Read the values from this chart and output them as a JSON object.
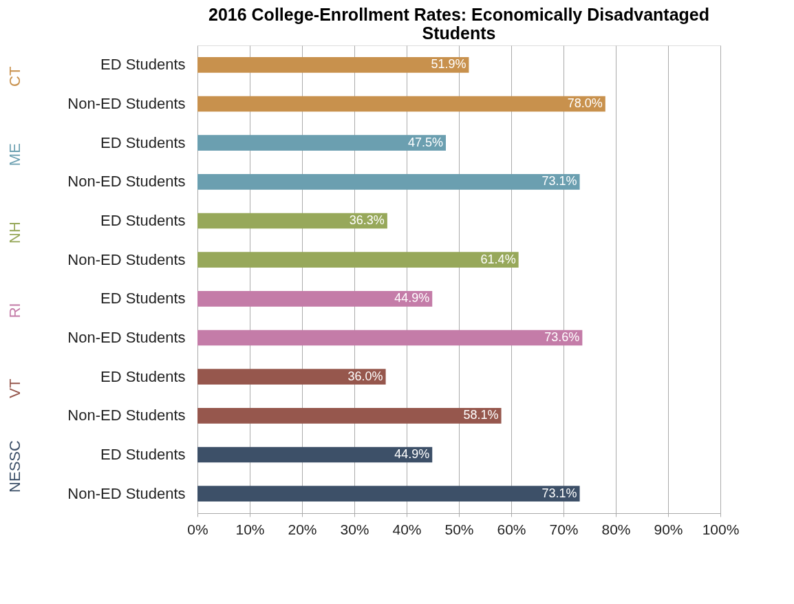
{
  "chart_data": {
    "type": "bar",
    "orientation": "horizontal",
    "title": "2016 College-Enrollment Rates: Economically Disadvantaged Students",
    "categories": [
      "ED Students",
      "Non-ED Students",
      "ED Students",
      "Non-ED Students",
      "ED Students",
      "Non-ED Students",
      "ED Students",
      "Non-ED Students",
      "ED Students",
      "Non-ED Students",
      "ED Students",
      "Non-ED Students"
    ],
    "series": [
      {
        "name": "CT",
        "color": "#c8914d",
        "values": [
          51.9,
          78.0,
          null,
          null,
          null,
          null,
          null,
          null,
          null,
          null,
          null,
          null
        ],
        "value_labels": [
          "51.9%",
          "78.0%",
          null,
          null,
          null,
          null,
          null,
          null,
          null,
          null,
          null,
          null
        ]
      },
      {
        "name": "ME",
        "color": "#6b9fb0",
        "values": [
          null,
          null,
          47.5,
          73.1,
          null,
          null,
          null,
          null,
          null,
          null,
          null,
          null
        ],
        "value_labels": [
          null,
          null,
          "47.5%",
          "73.1%",
          null,
          null,
          null,
          null,
          null,
          null,
          null,
          null
        ]
      },
      {
        "name": "NH",
        "color": "#97a85a",
        "values": [
          null,
          null,
          null,
          null,
          36.3,
          61.4,
          null,
          null,
          null,
          null,
          null,
          null
        ],
        "value_labels": [
          null,
          null,
          null,
          null,
          "36.3%",
          "61.4%",
          null,
          null,
          null,
          null,
          null,
          null
        ]
      },
      {
        "name": "RI",
        "color": "#c47ca8",
        "values": [
          null,
          null,
          null,
          null,
          null,
          null,
          44.9,
          73.6,
          null,
          null,
          null,
          null
        ],
        "value_labels": [
          null,
          null,
          null,
          null,
          null,
          null,
          "44.9%",
          "73.6%",
          null,
          null,
          null,
          null
        ]
      },
      {
        "name": "VT",
        "color": "#96574d",
        "values": [
          null,
          null,
          null,
          null,
          null,
          null,
          null,
          null,
          36.0,
          58.1,
          null,
          null
        ],
        "value_labels": [
          null,
          null,
          null,
          null,
          null,
          null,
          null,
          null,
          "36.0%",
          "58.1%",
          null,
          null
        ]
      },
      {
        "name": "NESSC",
        "color": "#3d5068",
        "values": [
          null,
          null,
          null,
          null,
          null,
          null,
          null,
          null,
          null,
          null,
          44.9,
          73.1
        ],
        "value_labels": [
          null,
          null,
          null,
          null,
          null,
          null,
          null,
          null,
          null,
          null,
          "44.9%",
          "73.1%"
        ]
      }
    ],
    "xlim": [
      0,
      100
    ],
    "xticks": [
      {
        "value": 0,
        "label": "0%"
      },
      {
        "value": 10,
        "label": "10%"
      },
      {
        "value": 20,
        "label": "20%"
      },
      {
        "value": 30,
        "label": "30%"
      },
      {
        "value": 40,
        "label": "40%"
      },
      {
        "value": 50,
        "label": "50%"
      },
      {
        "value": 60,
        "label": "60%"
      },
      {
        "value": 70,
        "label": "70%"
      },
      {
        "value": 80,
        "label": "80%"
      },
      {
        "value": 90,
        "label": "90%"
      },
      {
        "value": 100,
        "label": "100%"
      }
    ],
    "grid": "x",
    "legend": false
  }
}
